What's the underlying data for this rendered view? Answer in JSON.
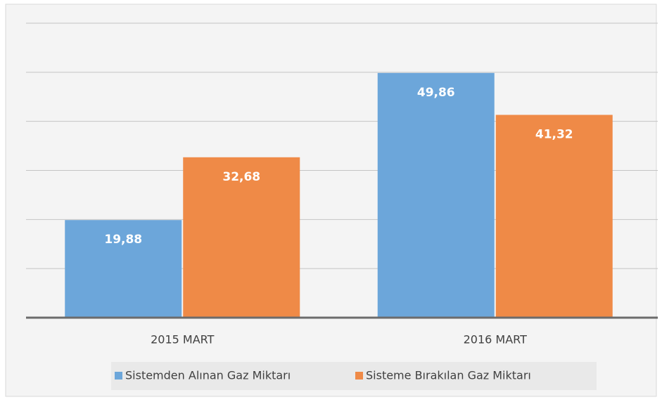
{
  "chart_data": {
    "type": "bar",
    "categories": [
      "2015 MART",
      "2016 MART"
    ],
    "series": [
      {
        "name": "Sistemden Alınan Gaz Miktarı",
        "color": "#6ca6da",
        "values": [
          19.88,
          49.86
        ],
        "value_labels": [
          "19,88",
          "49,86"
        ]
      },
      {
        "name": "Sisteme Bırakılan Gaz Miktarı",
        "color": "#ef8a47",
        "values": [
          32.68,
          41.32
        ],
        "value_labels": [
          "32,68",
          "41,32"
        ]
      }
    ],
    "ylim": [
      0,
      60
    ],
    "yticks": [
      0,
      10,
      20,
      30,
      40,
      50,
      60
    ],
    "grid": true,
    "legend": "bottom"
  }
}
